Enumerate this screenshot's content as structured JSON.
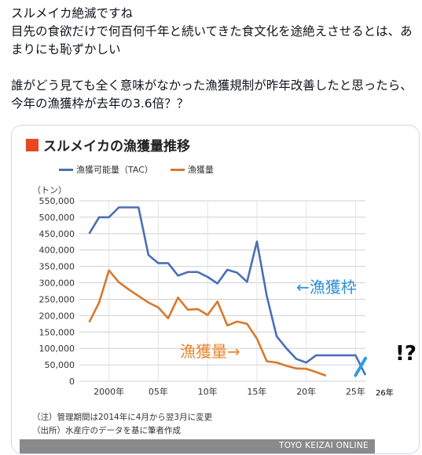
{
  "post": {
    "line1": "スルメイカ絶滅ですね",
    "line2": "目先の食欲だけで何百何千年と続いてきた食文化を途絶えさせるとは、あ",
    "line3": "まりにも恥ずかしい",
    "line4": "誰がどう見ても全く意味がなかった漁獲規制が昨年改善したと思ったら、",
    "line5": "今年の漁獲枠が去年の3.6倍？？"
  },
  "image": {
    "title": "スルメイカの漁獲量推移",
    "unit": "（トン）",
    "note1": "（注）管理期間は2014年に4月から翌3月に変更",
    "note2": "（出所）水産庁のデータを基に筆者作成",
    "credit": "TOYO KEIZAI ONLINE",
    "annotation_tac": "←漁獲枠",
    "annotation_catch": "漁獲量→",
    "exclaim": "!?",
    "year26": "26年"
  },
  "colors": {
    "tac": "#4a6fb5",
    "catch": "#d9782d",
    "title_square": "#e8481e",
    "annotation_blue": "#2f8fd8",
    "annotation_orange": "#e8832a",
    "added_line": "#2f9de0"
  },
  "chart_data": {
    "type": "line",
    "title": "スルメイカの漁獲量推移",
    "ylabel": "（トン）",
    "ylim": [
      0,
      550000
    ],
    "yticks": [
      0,
      50000,
      100000,
      150000,
      200000,
      250000,
      300000,
      350000,
      400000,
      450000,
      500000,
      550000
    ],
    "ytick_labels": [
      "0",
      "50,000",
      "100,000",
      "150,000",
      "200,000",
      "250,000",
      "300,000",
      "350,000",
      "400,000",
      "450,000",
      "500,000",
      "550,000"
    ],
    "xlim": [
      1997,
      2026
    ],
    "xticks": [
      2000,
      2005,
      2010,
      2015,
      2020,
      2025
    ],
    "xtick_labels": [
      "2000年",
      "05年",
      "10年",
      "15年",
      "20年",
      "25年"
    ],
    "legend": "top",
    "series": [
      {
        "name": "漁獲可能量（TAC）",
        "x": [
          1998,
          1999,
          2000,
          2001,
          2002,
          2003,
          2004,
          2005,
          2006,
          2007,
          2008,
          2009,
          2010,
          2011,
          2012,
          2013,
          2014,
          2015,
          2016,
          2017,
          2018,
          2019,
          2020,
          2021,
          2022,
          2023,
          2024,
          2025,
          2026
        ],
        "values": [
          450000,
          500000,
          500000,
          530000,
          530000,
          530000,
          385000,
          360000,
          360000,
          322000,
          333000,
          333000,
          318000,
          298000,
          340000,
          331000,
          303000,
          426000,
          260000,
          137000,
          100000,
          68000,
          57000,
          79000,
          79000,
          79000,
          79000,
          79000,
          19000
        ]
      },
      {
        "name": "漁獲量",
        "x": [
          1998,
          1999,
          2000,
          2001,
          2002,
          2003,
          2004,
          2005,
          2006,
          2007,
          2008,
          2009,
          2010,
          2011,
          2012,
          2013,
          2014,
          2015,
          2016,
          2017,
          2018,
          2019,
          2020,
          2021,
          2022
        ],
        "values": [
          180000,
          240000,
          338000,
          302000,
          280000,
          260000,
          240000,
          225000,
          192000,
          255000,
          218000,
          220000,
          202000,
          243000,
          170000,
          182000,
          175000,
          130000,
          61000,
          57000,
          47000,
          39000,
          38000,
          28000,
          17000
        ]
      },
      {
        "name": "",
        "x": [
          2025,
          2026
        ],
        "values": [
          18000,
          70000
        ]
      }
    ]
  }
}
